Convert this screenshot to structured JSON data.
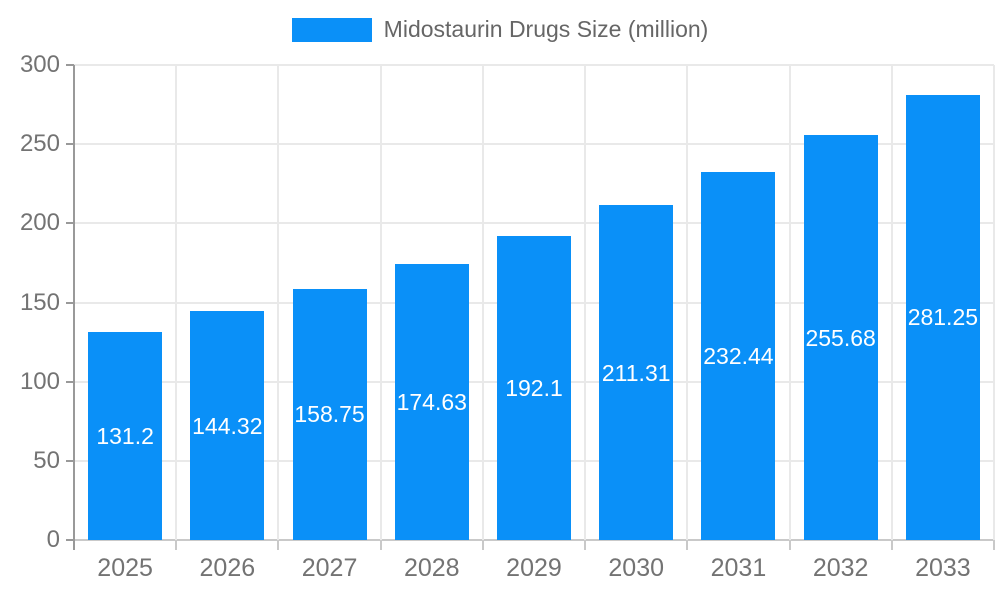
{
  "chart": {
    "legend": {
      "label": "Midostaurin Drugs Size (million)",
      "swatch_color": "#0a90f8"
    },
    "colors": {
      "bar": "#0a90f8",
      "grid_line": "#e9e9e9",
      "baseline": "#c9c9c9",
      "x_tick": "#c9c9c9",
      "y_axis_line": "#999999",
      "axis_label_text": "#737373",
      "title_text": "#666666",
      "value_label_text": "#ffffff"
    }
  },
  "chart_data": {
    "type": "bar",
    "title": "Midostaurin Drugs Size (million)",
    "categories": [
      "2025",
      "2026",
      "2027",
      "2028",
      "2029",
      "2030",
      "2031",
      "2032",
      "2033"
    ],
    "values": [
      131.2,
      144.32,
      158.75,
      174.63,
      192.1,
      211.31,
      232.44,
      255.68,
      281.25
    ],
    "value_labels": [
      "131.2",
      "144.32",
      "158.75",
      "174.63",
      "192.1",
      "211.31",
      "232.44",
      "255.68",
      "281.25"
    ],
    "xlabel": "",
    "ylabel": "",
    "ylim": [
      0,
      300
    ],
    "yticks": [
      0,
      50,
      100,
      150,
      200,
      250,
      300
    ],
    "grid": true,
    "legend_position": "top"
  }
}
